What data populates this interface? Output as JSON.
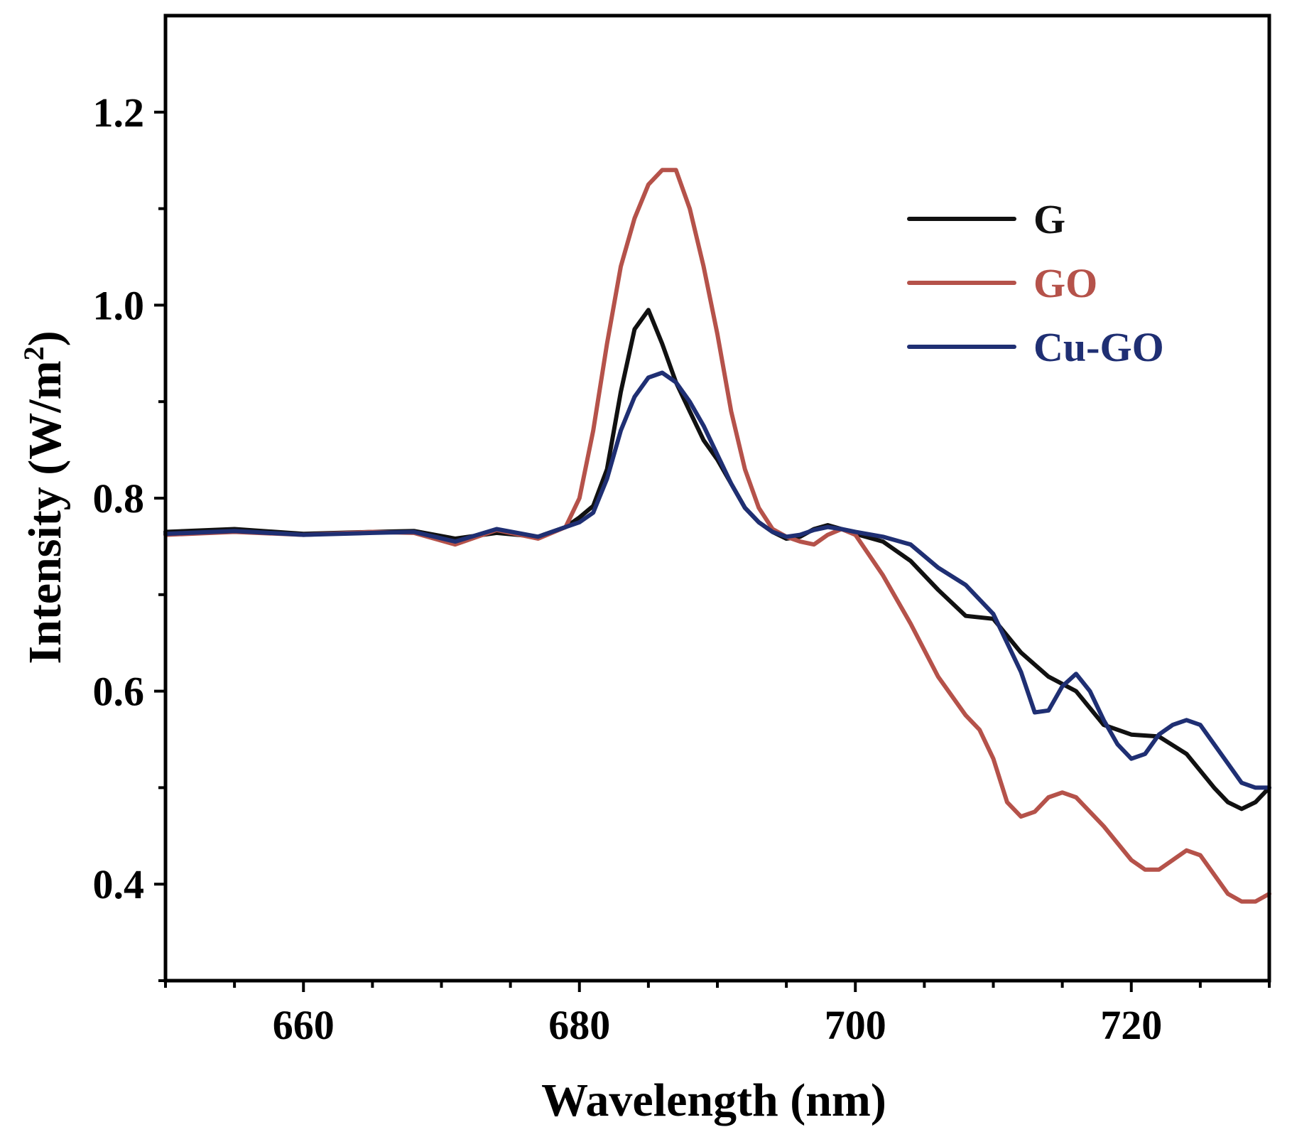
{
  "chart_data": {
    "type": "line",
    "xlabel": "Wavelength (nm)",
    "ylabel": "Intensity (W/m",
    "ylabel_superscript": "2",
    "ylabel_suffix": ")",
    "xlim": [
      650,
      730
    ],
    "ylim": [
      0.3,
      1.3
    ],
    "xticks": [
      660,
      680,
      700,
      720
    ],
    "xtick_labels": [
      "660",
      "680",
      "700",
      "720"
    ],
    "yticks": [
      0.4,
      0.6,
      0.8,
      1.0,
      1.2
    ],
    "ytick_labels": [
      "0.4",
      "0.6",
      "0.8",
      "1.0",
      "1.2"
    ],
    "legend_position": "top-right",
    "colors": {
      "G": "#111111",
      "GO": "#b5524a",
      "Cu-GO": "#1f2f73"
    },
    "series": [
      {
        "name": "G",
        "x": [
          650,
          655,
          660,
          665,
          668,
          671,
          674,
          677,
          679,
          680,
          681,
          682,
          683,
          684,
          685,
          686,
          687,
          688,
          689,
          690,
          691,
          692,
          693,
          694,
          695,
          696,
          697,
          698,
          699,
          700,
          702,
          704,
          706,
          708,
          710,
          712,
          714,
          716,
          718,
          720,
          722,
          724,
          726,
          727,
          728,
          729,
          730
        ],
        "values": [
          0.765,
          0.768,
          0.763,
          0.765,
          0.766,
          0.758,
          0.764,
          0.76,
          0.77,
          0.78,
          0.792,
          0.83,
          0.91,
          0.975,
          0.995,
          0.96,
          0.92,
          0.89,
          0.86,
          0.84,
          0.815,
          0.79,
          0.775,
          0.765,
          0.758,
          0.76,
          0.768,
          0.772,
          0.768,
          0.763,
          0.755,
          0.735,
          0.705,
          0.678,
          0.675,
          0.64,
          0.615,
          0.6,
          0.565,
          0.555,
          0.553,
          0.535,
          0.5,
          0.485,
          0.478,
          0.485,
          0.5
        ]
      },
      {
        "name": "GO",
        "x": [
          650,
          655,
          660,
          665,
          668,
          671,
          674,
          677,
          679,
          680,
          681,
          682,
          683,
          684,
          685,
          686,
          687,
          688,
          689,
          690,
          691,
          692,
          693,
          694,
          695,
          696,
          697,
          698,
          699,
          700,
          702,
          704,
          706,
          708,
          709,
          710,
          711,
          712,
          713,
          714,
          715,
          716,
          718,
          720,
          721,
          722,
          723,
          724,
          725,
          726,
          727,
          728,
          729,
          730
        ],
        "values": [
          0.762,
          0.765,
          0.762,
          0.765,
          0.764,
          0.752,
          0.767,
          0.758,
          0.77,
          0.8,
          0.87,
          0.96,
          1.04,
          1.09,
          1.125,
          1.14,
          1.14,
          1.1,
          1.04,
          0.97,
          0.89,
          0.83,
          0.79,
          0.768,
          0.76,
          0.755,
          0.752,
          0.762,
          0.768,
          0.762,
          0.72,
          0.67,
          0.615,
          0.575,
          0.56,
          0.53,
          0.485,
          0.47,
          0.475,
          0.49,
          0.495,
          0.49,
          0.46,
          0.425,
          0.415,
          0.415,
          0.425,
          0.435,
          0.43,
          0.41,
          0.39,
          0.382,
          0.382,
          0.39
        ]
      },
      {
        "name": "Cu-GO",
        "x": [
          650,
          655,
          660,
          665,
          668,
          671,
          674,
          677,
          679,
          680,
          681,
          682,
          683,
          684,
          685,
          686,
          687,
          688,
          689,
          690,
          691,
          692,
          693,
          694,
          695,
          696,
          697,
          698,
          699,
          700,
          702,
          704,
          706,
          708,
          710,
          712,
          713,
          714,
          715,
          716,
          717,
          718,
          719,
          720,
          721,
          722,
          723,
          724,
          725,
          726,
          727,
          728,
          729,
          730
        ],
        "values": [
          0.763,
          0.766,
          0.762,
          0.764,
          0.765,
          0.755,
          0.768,
          0.76,
          0.77,
          0.775,
          0.785,
          0.82,
          0.87,
          0.905,
          0.925,
          0.93,
          0.92,
          0.9,
          0.875,
          0.845,
          0.815,
          0.79,
          0.775,
          0.765,
          0.76,
          0.762,
          0.767,
          0.77,
          0.768,
          0.765,
          0.76,
          0.752,
          0.728,
          0.71,
          0.68,
          0.62,
          0.578,
          0.58,
          0.605,
          0.618,
          0.6,
          0.57,
          0.545,
          0.53,
          0.535,
          0.555,
          0.565,
          0.57,
          0.565,
          0.545,
          0.525,
          0.505,
          0.5,
          0.5
        ]
      }
    ]
  }
}
